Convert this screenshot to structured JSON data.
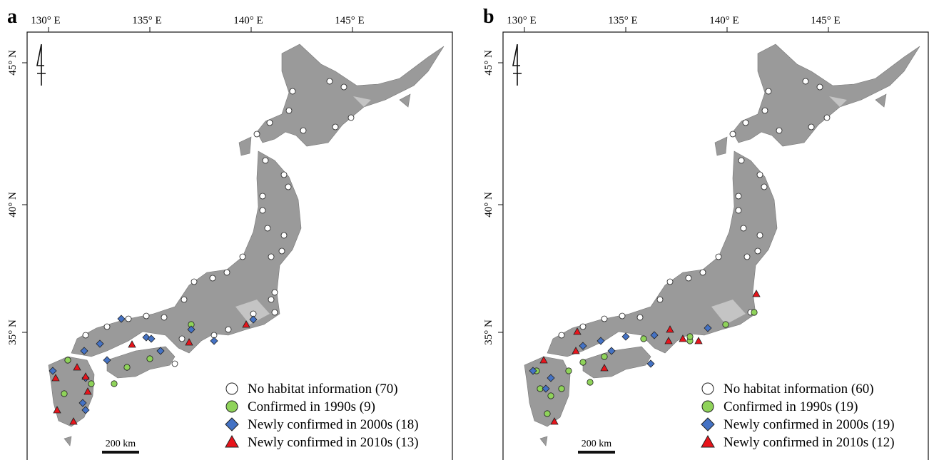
{
  "panels": [
    {
      "label": "a",
      "x_ticks": [
        "130°  E",
        "135°  E",
        "140°  E",
        "145°  E"
      ],
      "y_ticks": [
        "45°  N",
        "40°  N",
        "35°  N"
      ],
      "legend": [
        "No habitat information (70)",
        "Confirmed in 1990s (9)",
        "Newly confirmed in 2000s (18)",
        "Newly confirmed in 2010s (13)"
      ],
      "scale_bar": "200 km"
    },
    {
      "label": "b",
      "x_ticks": [
        "130°  E",
        "135°  E",
        "140°  E",
        "145°  E"
      ],
      "y_ticks": [
        "45°  N",
        "40°  N",
        "35°  N"
      ],
      "legend": [
        "No habitat information (60)",
        "Confirmed in 1990s (19)",
        "Newly confirmed in 2000s (19)",
        "Newly confirmed in 2010s (12)"
      ],
      "scale_bar": "200 km"
    }
  ]
}
